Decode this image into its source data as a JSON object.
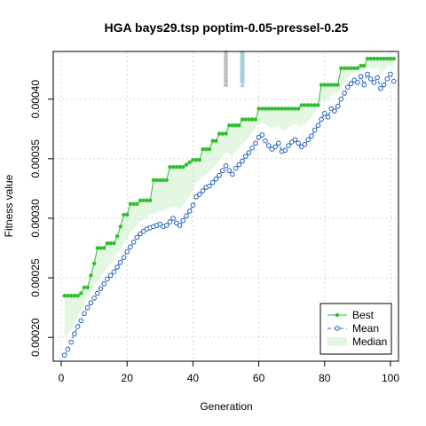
{
  "chart_data": {
    "type": "line",
    "title": "HGA bays29.tsp poptim-0.05-pressel-0.25",
    "xlabel": "Generation",
    "ylabel": "Fitness value",
    "xlim": [
      0,
      100
    ],
    "ylim": [
      0.00018,
      0.00044
    ],
    "x_ticks": [
      0,
      20,
      40,
      60,
      80,
      100
    ],
    "y_ticks": [
      0.0002,
      0.00025,
      0.0003,
      0.00035,
      0.0004
    ],
    "y_tick_labels": [
      "0.00020",
      "0.00025",
      "0.00030",
      "0.00035",
      "0.00040"
    ],
    "grid": true,
    "legend_position": "bottom-right",
    "legend": [
      {
        "label": "Best",
        "color": "#2ebf2e",
        "style": "line-point"
      },
      {
        "label": "Mean",
        "color": "#1f5fbf",
        "style": "dashed-open-circle"
      },
      {
        "label": "Median",
        "color": "#e3f7e3",
        "style": "band"
      }
    ],
    "series": [
      {
        "name": "Best",
        "color": "#2ebf2e",
        "values": [
          0.000235,
          0.000235,
          0.000235,
          0.000235,
          0.000235,
          0.000237,
          0.000242,
          0.000242,
          0.000252,
          0.000262,
          0.000275,
          0.000275,
          0.000275,
          0.000279,
          0.000279,
          0.000279,
          0.000285,
          0.000293,
          0.000303,
          0.000303,
          0.000312,
          0.000312,
          0.000312,
          0.000315,
          0.000315,
          0.000315,
          0.000315,
          0.000332,
          0.000332,
          0.000332,
          0.000332,
          0.000332,
          0.000343,
          0.000343,
          0.000343,
          0.000343,
          0.000343,
          0.000345,
          0.000347,
          0.000349,
          0.000349,
          0.000349,
          0.000358,
          0.000358,
          0.000358,
          0.000365,
          0.000365,
          0.000371,
          0.000371,
          0.000371,
          0.000378,
          0.000378,
          0.000378,
          0.000378,
          0.000383,
          0.000383,
          0.000383,
          0.000383,
          0.000383,
          0.000392,
          0.000392,
          0.000392,
          0.000392,
          0.000392,
          0.000392,
          0.000392,
          0.000392,
          0.000392,
          0.000392,
          0.000392,
          0.000392,
          0.000392,
          0.000395,
          0.000395,
          0.000395,
          0.000395,
          0.000395,
          0.000395,
          0.000412,
          0.000412,
          0.000412,
          0.000412,
          0.000412,
          0.000412,
          0.000426,
          0.000426,
          0.000426,
          0.000426,
          0.000426,
          0.000426,
          0.000428,
          0.000428,
          0.000434,
          0.000434,
          0.000434,
          0.000434,
          0.000434,
          0.000434,
          0.000434,
          0.000434,
          0.000434
        ]
      },
      {
        "name": "Mean",
        "color": "#1f5fbf",
        "values": [
          0.000185,
          0.00019,
          0.000196,
          0.000203,
          0.000209,
          0.000214,
          0.00022,
          0.000225,
          0.000229,
          0.000233,
          0.000237,
          0.000241,
          0.000245,
          0.000249,
          0.000252,
          0.000255,
          0.000259,
          0.000263,
          0.000267,
          0.000272,
          0.000276,
          0.00028,
          0.000284,
          0.000287,
          0.000289,
          0.000291,
          0.000292,
          0.000293,
          0.000294,
          0.000295,
          0.000293,
          0.000294,
          0.000297,
          0.0003,
          0.000296,
          0.000294,
          0.000298,
          0.000302,
          0.000306,
          0.000311,
          0.000318,
          0.00032,
          0.000323,
          0.000326,
          0.000327,
          0.00033,
          0.000333,
          0.000336,
          0.00034,
          0.000344,
          0.00034,
          0.000337,
          0.000342,
          0.000345,
          0.000348,
          0.000352,
          0.000355,
          0.000359,
          0.000363,
          0.000368,
          0.00037,
          0.000365,
          0.000361,
          0.000358,
          0.00036,
          0.000363,
          0.000356,
          0.000357,
          0.000361,
          0.000364,
          0.000366,
          0.000363,
          0.00036,
          0.000362,
          0.000366,
          0.000369,
          0.000374,
          0.000378,
          0.000383,
          0.000388,
          0.000385,
          0.000392,
          0.00039,
          0.000394,
          0.0004,
          0.000405,
          0.00041,
          0.000413,
          0.000416,
          0.000414,
          0.000419,
          0.000412,
          0.000421,
          0.000417,
          0.000414,
          0.000418,
          0.000409,
          0.000412,
          0.000417,
          0.000421,
          0.000415
        ]
      },
      {
        "name": "Median",
        "color": "#e3f7e3",
        "values": [
          0.0002,
          0.000203,
          0.000207,
          0.000212,
          0.000218,
          0.000223,
          0.000228,
          0.000233,
          0.000238,
          0.000243,
          0.000247,
          0.000251,
          0.000255,
          0.000259,
          0.000262,
          0.000266,
          0.00027,
          0.000274,
          0.000279,
          0.000283,
          0.000288,
          0.000291,
          0.000294,
          0.000297,
          0.000299,
          0.000301,
          0.000303,
          0.000304,
          0.000305,
          0.000306,
          0.000306,
          0.000307,
          0.000309,
          0.00031,
          0.000309,
          0.000308,
          0.000311,
          0.000315,
          0.000319,
          0.000324,
          0.00033,
          0.000332,
          0.000335,
          0.000337,
          0.000339,
          0.000342,
          0.000345,
          0.000348,
          0.000352,
          0.000356,
          0.000354,
          0.000352,
          0.000356,
          0.000359,
          0.000362,
          0.000365,
          0.000368,
          0.000372,
          0.000376,
          0.00038,
          0.000381,
          0.000379,
          0.000377,
          0.000376,
          0.000377,
          0.000378,
          0.000374,
          0.000374,
          0.000376,
          0.000378,
          0.000379,
          0.000378,
          0.000377,
          0.000379,
          0.000382,
          0.000385,
          0.000389,
          0.000393,
          0.000397,
          0.0004,
          0.000399,
          0.000403,
          0.000403,
          0.000406,
          0.00041,
          0.000414,
          0.000418,
          0.000421,
          0.000424,
          0.000423,
          0.000426,
          0.000423,
          0.000428,
          0.000426,
          0.000425,
          0.000427,
          0.000422,
          0.000424,
          0.000427,
          0.000429,
          0.000426
        ]
      }
    ],
    "scatter_overflow": [
      {
        "x": 50,
        "color": "#c0c0c0",
        "marker": "circle",
        "ys": [
          0.000412,
          0.000415,
          0.000418,
          0.000421,
          0.000424,
          0.000427,
          0.00043,
          0.000433,
          0.000436,
          0.000439
        ]
      },
      {
        "x": 55,
        "color": "#c0c0c0",
        "marker": "circle",
        "ys": [
          0.000415,
          0.000418,
          0.000421,
          0.000424,
          0.000427,
          0.00043,
          0.000433,
          0.000436,
          0.000439
        ]
      },
      {
        "x": 55,
        "color": "#9fd3e3",
        "marker": "triangle",
        "ys": [
          0.000412,
          0.000415,
          0.000418,
          0.000421,
          0.000424,
          0.000427,
          0.00043,
          0.000433,
          0.000436,
          0.000439
        ]
      }
    ]
  }
}
